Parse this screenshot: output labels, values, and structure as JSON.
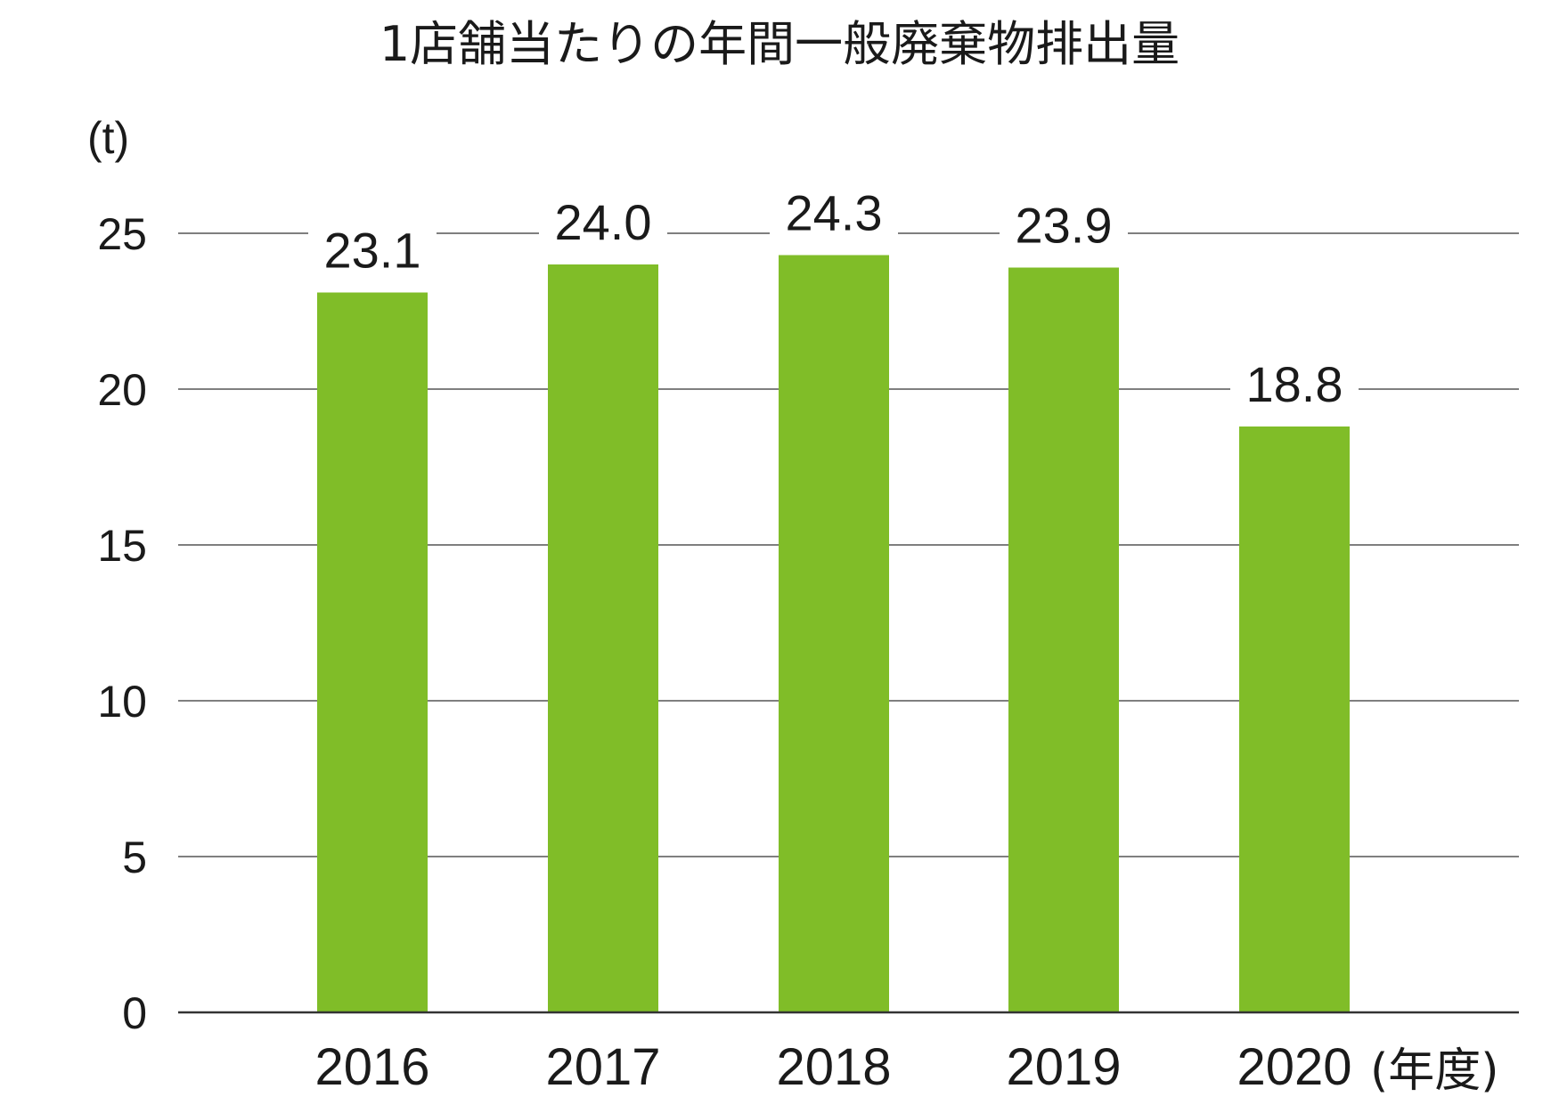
{
  "chart_data": {
    "type": "bar",
    "title": "1店舗当たりの年間一般廃棄物排出量",
    "ylabel": "(t)",
    "xlabel": "(年度)",
    "categories": [
      "2016",
      "2017",
      "2018",
      "2019",
      "2020"
    ],
    "values": [
      23.1,
      24.0,
      24.3,
      23.9,
      18.8
    ],
    "data_labels": [
      "23.1",
      "24.0",
      "24.3",
      "23.9",
      "18.8"
    ],
    "ylim": [
      0,
      25
    ],
    "yticks": [
      0,
      5,
      10,
      15,
      20,
      25
    ],
    "grid": true,
    "legend": "none",
    "bar_color": "#80bd28"
  }
}
